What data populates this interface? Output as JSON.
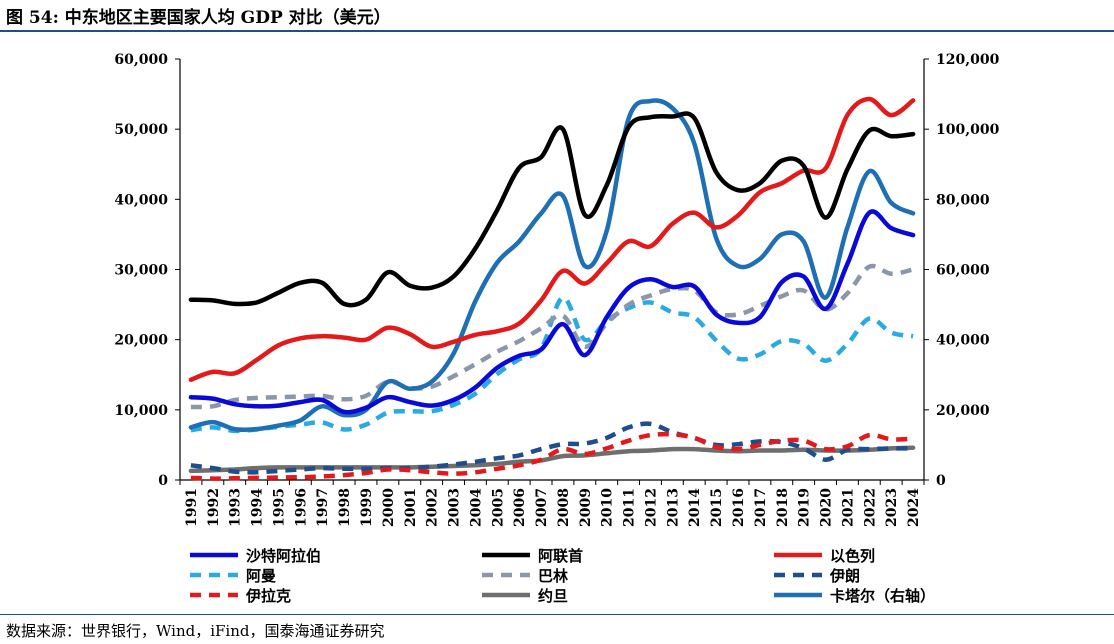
{
  "title": "图 54:  中东地区主要国家人均 GDP 对比（美元）",
  "source": "数据来源：世界银行，Wind，iFind，国泰海通证券研究",
  "chart_data": {
    "type": "line",
    "x": [
      1991,
      1992,
      1993,
      1994,
      1995,
      1996,
      1997,
      1998,
      1999,
      2000,
      2001,
      2002,
      2003,
      2004,
      2005,
      2006,
      2007,
      2008,
      2009,
      2010,
      2011,
      2012,
      2013,
      2014,
      2015,
      2016,
      2017,
      2018,
      2019,
      2020,
      2021,
      2022,
      2023,
      2024
    ],
    "x_labels": [
      "1991",
      "1992",
      "1993",
      "1994",
      "1995",
      "1996",
      "1997",
      "1998",
      "1999",
      "2000",
      "2001",
      "2002",
      "2003",
      "2004",
      "2005",
      "2006",
      "2007",
      "2008",
      "2009",
      "2010",
      "2011",
      "2012",
      "2013",
      "2014",
      "2015",
      "2016",
      "2017",
      "2018",
      "2019",
      "2020",
      "2021",
      "2022",
      "2023",
      "2024"
    ],
    "ylim": [
      0,
      60000
    ],
    "y_ticks": [
      0,
      10000,
      20000,
      30000,
      40000,
      50000,
      60000
    ],
    "y_tick_labels": [
      "0",
      "10,000",
      "20,000",
      "30,000",
      "40,000",
      "50,000",
      "60,000"
    ],
    "y2lim": [
      0,
      120000
    ],
    "y2_ticks": [
      0,
      20000,
      40000,
      60000,
      80000,
      100000,
      120000
    ],
    "y2_tick_labels": [
      "0",
      "20,000",
      "40,000",
      "60,000",
      "80,000",
      "100,000",
      "120,000"
    ],
    "grid": false,
    "legend_position": "bottom",
    "series": [
      {
        "name": "沙特阿拉伯",
        "color": "#0a0ad8",
        "dash": "solid",
        "axis": "left",
        "values": [
          11800,
          11600,
          10800,
          10500,
          10600,
          11100,
          11400,
          9700,
          10300,
          11800,
          11100,
          10600,
          11400,
          13200,
          16000,
          17700,
          18600,
          22200,
          17800,
          23200,
          27400,
          28600,
          27500,
          27600,
          23600,
          22400,
          23200,
          28200,
          29000,
          24400,
          30800,
          38100,
          35900,
          34900
        ]
      },
      {
        "name": "阿联首",
        "color": "#000000",
        "dash": "solid",
        "axis": "left",
        "values": [
          25700,
          25600,
          25100,
          25300,
          26700,
          28100,
          28100,
          25100,
          25700,
          29600,
          27700,
          27400,
          29000,
          33000,
          38500,
          44500,
          46000,
          50000,
          37800,
          42000,
          50300,
          51700,
          51800,
          51600,
          43900,
          41300,
          42300,
          45500,
          44800,
          37400,
          44300,
          49800,
          49000,
          49300
        ]
      },
      {
        "name": "以色列",
        "color": "#e41a1a",
        "dash": "solid",
        "axis": "left",
        "values": [
          14300,
          15400,
          15200,
          17100,
          19200,
          20200,
          20500,
          20300,
          20000,
          21700,
          20800,
          19000,
          19700,
          20700,
          21200,
          22300,
          25600,
          29800,
          28000,
          30900,
          34000,
          33300,
          36500,
          38100,
          36000,
          37700,
          41000,
          42300,
          44100,
          44400,
          52000,
          54300,
          52000,
          54100
        ]
      },
      {
        "name": "阿曼",
        "color": "#29aae2",
        "dash": "dash",
        "axis": "left",
        "values": [
          7100,
          7500,
          7000,
          7200,
          7600,
          7900,
          8200,
          7200,
          7900,
          9600,
          9800,
          9800,
          10700,
          12300,
          15100,
          17200,
          18700,
          26000,
          20000,
          22700,
          24500,
          25300,
          23900,
          23200,
          19900,
          17300,
          17900,
          19800,
          19400,
          17000,
          19400,
          23000,
          21000,
          20500
        ]
      },
      {
        "name": "巴林",
        "color": "#8c96aa",
        "dash": "dash",
        "axis": "left",
        "values": [
          10400,
          10500,
          11400,
          11700,
          11800,
          11900,
          12000,
          11500,
          12000,
          14000,
          13100,
          13300,
          14800,
          16500,
          18300,
          19800,
          21600,
          23400,
          19000,
          22300,
          25000,
          26300,
          27200,
          27000,
          23900,
          23600,
          24800,
          26200,
          27000,
          24300,
          26600,
          30400,
          29400,
          30000
        ]
      },
      {
        "name": "伊朗",
        "color": "#1f4e8c",
        "dash": "dash",
        "axis": "left",
        "values": [
          2100,
          1700,
          1200,
          1100,
          1300,
          1500,
          1700,
          1600,
          1600,
          1700,
          1700,
          1900,
          2200,
          2600,
          3100,
          3500,
          4400,
          5100,
          5200,
          6000,
          7500,
          8000,
          6800,
          6000,
          5000,
          5100,
          5500,
          5400,
          4500,
          2900,
          4300,
          4400,
          4500,
          4500
        ]
      },
      {
        "name": "伊拉克",
        "color": "#e41a1a",
        "dash": "dash",
        "axis": "left",
        "values": [
          300,
          200,
          250,
          300,
          350,
          400,
          500,
          700,
          1000,
          1500,
          1400,
          1100,
          900,
          1100,
          1600,
          2100,
          2900,
          4400,
          3700,
          4500,
          5600,
          6400,
          6500,
          6000,
          4700,
          4400,
          5000,
          5600,
          5600,
          4400,
          4800,
          6400,
          5800,
          5900
        ]
      },
      {
        "name": "约旦",
        "color": "#6e6e6e",
        "dash": "solid",
        "axis": "left",
        "values": [
          1300,
          1400,
          1500,
          1700,
          1800,
          1800,
          1800,
          1800,
          1800,
          1800,
          1800,
          1900,
          2000,
          2100,
          2300,
          2600,
          2800,
          3400,
          3500,
          3800,
          4100,
          4200,
          4400,
          4400,
          4200,
          4100,
          4200,
          4200,
          4300,
          4200,
          4200,
          4300,
          4500,
          4600
        ]
      },
      {
        "name": "卡塔尔（右轴）",
        "color": "#1f6fb5",
        "dash": "solid",
        "axis": "right",
        "values": [
          15000,
          16500,
          14500,
          14500,
          15500,
          17000,
          21000,
          18500,
          20000,
          28000,
          26000,
          28000,
          36000,
          51000,
          62000,
          68000,
          76000,
          81000,
          61000,
          71000,
          103000,
          108000,
          106000,
          96000,
          69000,
          61000,
          63000,
          70000,
          68000,
          52000,
          72000,
          88000,
          79000,
          76000
        ]
      }
    ]
  }
}
